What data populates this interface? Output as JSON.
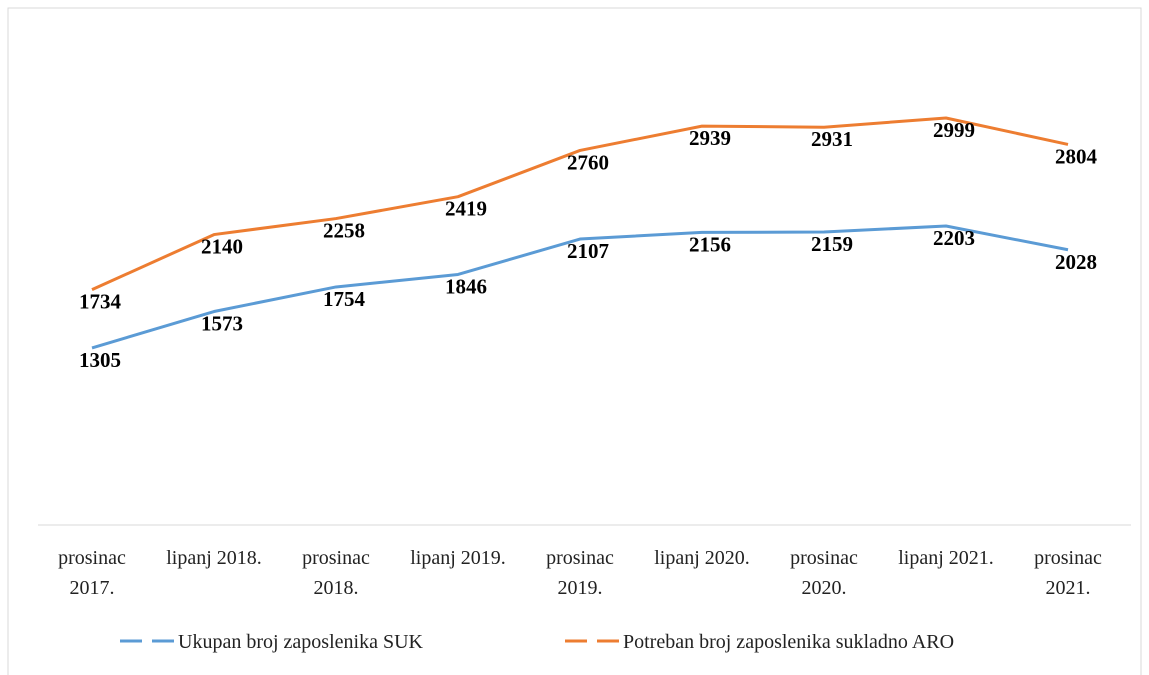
{
  "chart_data": {
    "type": "line",
    "categories": [
      "prosinac 2017.",
      "lipanj 2018.",
      "prosinac 2018.",
      "lipanj 2019.",
      "prosinac 2019.",
      "lipanj 2020.",
      "prosinac 2020.",
      "lipanj 2021.",
      "prosinac 2021."
    ],
    "series": [
      {
        "name": "Ukupan broj zaposlenika SUK",
        "color": "#5b9bd5",
        "values": [
          1305,
          1573,
          1754,
          1846,
          2107,
          2156,
          2159,
          2203,
          2028
        ]
      },
      {
        "name": "Potreban broj zaposlenika sukladno ARO",
        "color": "#ed7d31",
        "values": [
          1734,
          2140,
          2258,
          2419,
          2760,
          2939,
          2931,
          2999,
          2804
        ]
      }
    ],
    "ylim": [
      0,
      3500
    ],
    "legend": "bottom"
  }
}
